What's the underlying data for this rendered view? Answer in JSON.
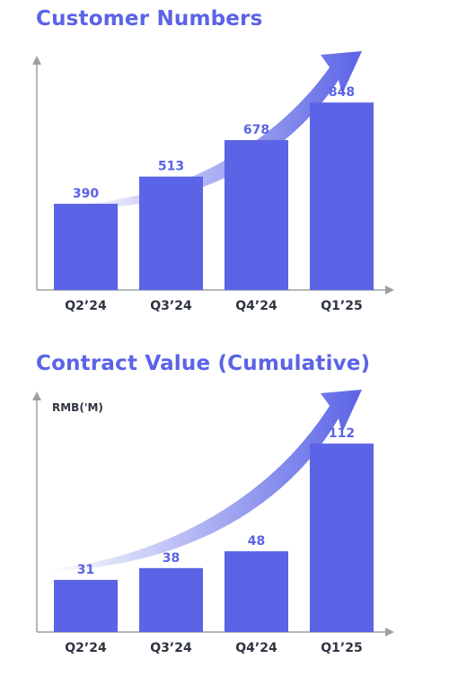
{
  "colors": {
    "title": "#5b63e6",
    "bar": "#5b63e6",
    "label": "#5b63e6",
    "axis": "#9aa0a6",
    "arrow": "#5b63e6"
  },
  "chart_data": [
    {
      "type": "bar",
      "title": "Customer Numbers",
      "ylabel": "",
      "categories": [
        "Q2’24",
        "Q3’24",
        "Q4’24",
        "Q1’25"
      ],
      "values": [
        390,
        513,
        678,
        848
      ],
      "data_labels": [
        "390",
        "513",
        "678",
        "848"
      ],
      "ylim": [
        0,
        1060
      ],
      "grid": false,
      "decoration": "rising-arrow"
    },
    {
      "type": "bar",
      "title": "Contract Value (Cumulative)",
      "ylabel": "RMB('M)",
      "categories": [
        "Q2’24",
        "Q3’24",
        "Q4’24",
        "Q1’25"
      ],
      "values": [
        31,
        38,
        48,
        112
      ],
      "data_labels": [
        "31",
        "38",
        "48",
        "112"
      ],
      "ylim": [
        0,
        143
      ],
      "grid": false,
      "decoration": "rising-arrow"
    }
  ]
}
